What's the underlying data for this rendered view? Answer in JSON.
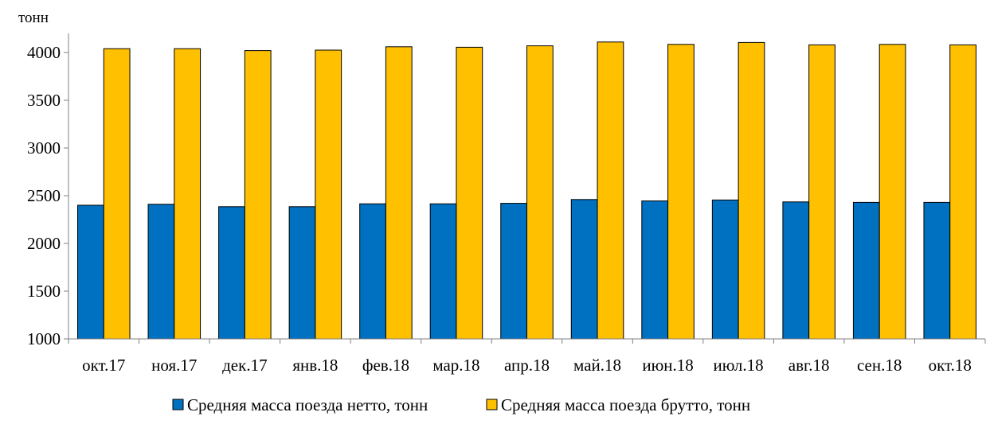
{
  "chart_data": {
    "type": "bar",
    "ylabel": "тонн",
    "ylim": [
      1000,
      4200
    ],
    "yticks": [
      1000,
      1500,
      2000,
      2500,
      3000,
      3500,
      4000
    ],
    "grid": false,
    "legend_position": "bottom",
    "categories": [
      "окт.17",
      "ноя.17",
      "дек.17",
      "янв.18",
      "фев.18",
      "мар.18",
      "апр.18",
      "май.18",
      "июн.18",
      "июл.18",
      "авг.18",
      "сен.18",
      "окт.18"
    ],
    "series": [
      {
        "name": "Средняя масса поезда нетто, тонн",
        "color": "#0070C0",
        "values": [
          2400,
          2410,
          2385,
          2385,
          2415,
          2415,
          2420,
          2460,
          2445,
          2455,
          2435,
          2430,
          2430
        ]
      },
      {
        "name": "Средняя масса поезда брутто, тонн",
        "color": "#FFC000",
        "values": [
          4040,
          4040,
          4020,
          4025,
          4060,
          4055,
          4070,
          4110,
          4085,
          4105,
          4080,
          4085,
          4080
        ]
      }
    ]
  }
}
